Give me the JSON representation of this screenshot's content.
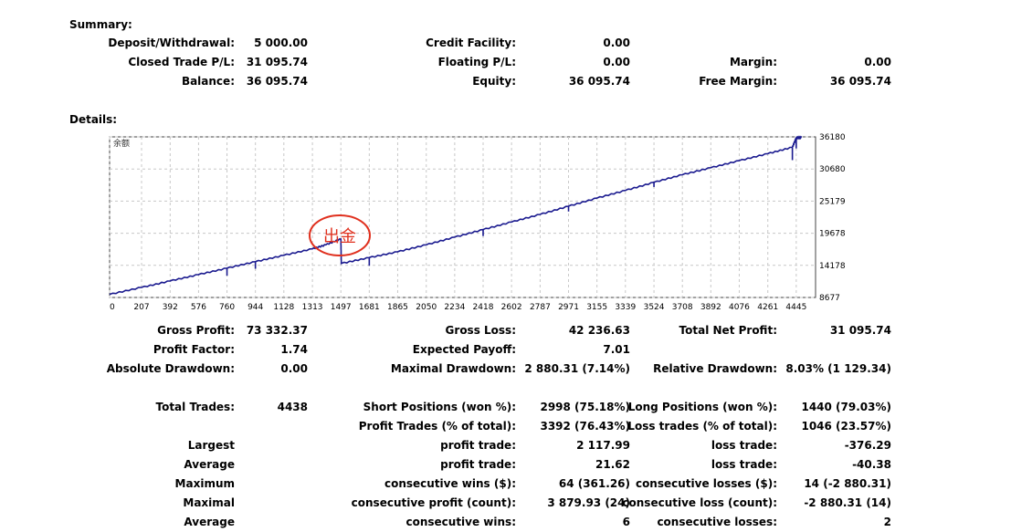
{
  "summary": {
    "title": "Summary:",
    "deposit_label": "Deposit/Withdrawal:",
    "deposit_value": "5 000.00",
    "credit_label": "Credit Facility:",
    "credit_value": "0.00",
    "closed_label": "Closed Trade P/L:",
    "closed_value": "31 095.74",
    "floating_label": "Floating P/L:",
    "floating_value": "0.00",
    "margin_label": "Margin:",
    "margin_value": "0.00",
    "balance_label": "Balance:",
    "balance_value": "36 095.74",
    "equity_label": "Equity:",
    "equity_value": "36 095.74",
    "free_margin_label": "Free Margin:",
    "free_margin_value": "36 095.74"
  },
  "details": {
    "title": "Details:"
  },
  "chart_data": {
    "type": "line",
    "legend": "余额",
    "annotation": "出金",
    "x_ticks": [
      "0",
      "207",
      "392",
      "576",
      "760",
      "944",
      "1128",
      "1313",
      "1497",
      "1681",
      "1865",
      "2050",
      "2234",
      "2418",
      "2602",
      "2787",
      "2971",
      "3155",
      "3339",
      "3524",
      "3708",
      "3892",
      "4076",
      "4261",
      "4445"
    ],
    "y_ticks": [
      "36180",
      "30680",
      "25179",
      "19678",
      "14178",
      "8677"
    ],
    "xlim": [
      0,
      4570
    ],
    "ylim": [
      8677,
      36180
    ],
    "grid": true,
    "series": [
      {
        "color": "#1a1a8f",
        "x": [
          0,
          207,
          392,
          576,
          760,
          944,
          1128,
          1313,
          1400,
          1497,
          1500,
          1681,
          1865,
          2050,
          2234,
          2418,
          2602,
          2787,
          2971,
          3155,
          3339,
          3524,
          3708,
          3892,
          4076,
          4261,
          4420,
          4445,
          4480
        ],
        "y": [
          9200,
          10400,
          11500,
          12600,
          13700,
          14800,
          15900,
          17000,
          17700,
          18700,
          14500,
          15500,
          16500,
          17700,
          19000,
          20300,
          21600,
          22900,
          24300,
          25700,
          27000,
          28400,
          29700,
          30900,
          32100,
          33300,
          34400,
          36000,
          36095.74
        ]
      }
    ]
  },
  "stats": {
    "gross_profit_label": "Gross Profit:",
    "gross_profit_value": "73 332.37",
    "gross_loss_label": "Gross Loss:",
    "gross_loss_value": "42 236.63",
    "total_net_label": "Total Net Profit:",
    "total_net_value": "31 095.74",
    "profit_factor_label": "Profit Factor:",
    "profit_factor_value": "1.74",
    "expected_payoff_label": "Expected Payoff:",
    "expected_payoff_value": "7.01",
    "abs_dd_label": "Absolute Drawdown:",
    "abs_dd_value": "0.00",
    "max_dd_label": "Maximal Drawdown:",
    "max_dd_value": "2 880.31 (7.14%)",
    "rel_dd_label": "Relative Drawdown:",
    "rel_dd_value": "8.03% (1 129.34)",
    "total_trades_label": "Total Trades:",
    "total_trades_value": "4438",
    "short_label": "Short Positions (won %):",
    "short_value": "2998 (75.18%)",
    "long_label": "Long Positions (won %):",
    "long_value": "1440 (79.03%)",
    "profit_trades_label": "Profit Trades (% of total):",
    "profit_trades_value": "3392 (76.43%)",
    "loss_trades_label": "Loss trades (% of total):",
    "loss_trades_value": "1046 (23.57%)",
    "largest_label": "Largest",
    "largest_profit_label": "profit trade:",
    "largest_profit_value": "2 117.99",
    "largest_loss_label": "loss trade:",
    "largest_loss_value": "-376.29",
    "average_label": "Average",
    "average_profit_label": "profit trade:",
    "average_profit_value": "21.62",
    "average_loss_label": "loss trade:",
    "average_loss_value": "-40.38",
    "maximum_label": "Maximum",
    "max_cons_wins_label": "consecutive wins ($):",
    "max_cons_wins_value": "64 (361.26)",
    "max_cons_losses_label": "consecutive losses ($):",
    "max_cons_losses_value": "14 (-2 880.31)",
    "maximal_label": "Maximal",
    "maximal_profit_label": "consecutive profit (count):",
    "maximal_profit_value": "3 879.93 (24)",
    "maximal_loss_label": "consecutive loss (count):",
    "maximal_loss_value": "-2 880.31 (14)",
    "average2_label": "Average",
    "avg_cons_wins_label": "consecutive wins:",
    "avg_cons_wins_value": "6",
    "avg_cons_losses_label": "consecutive losses:",
    "avg_cons_losses_value": "2"
  }
}
